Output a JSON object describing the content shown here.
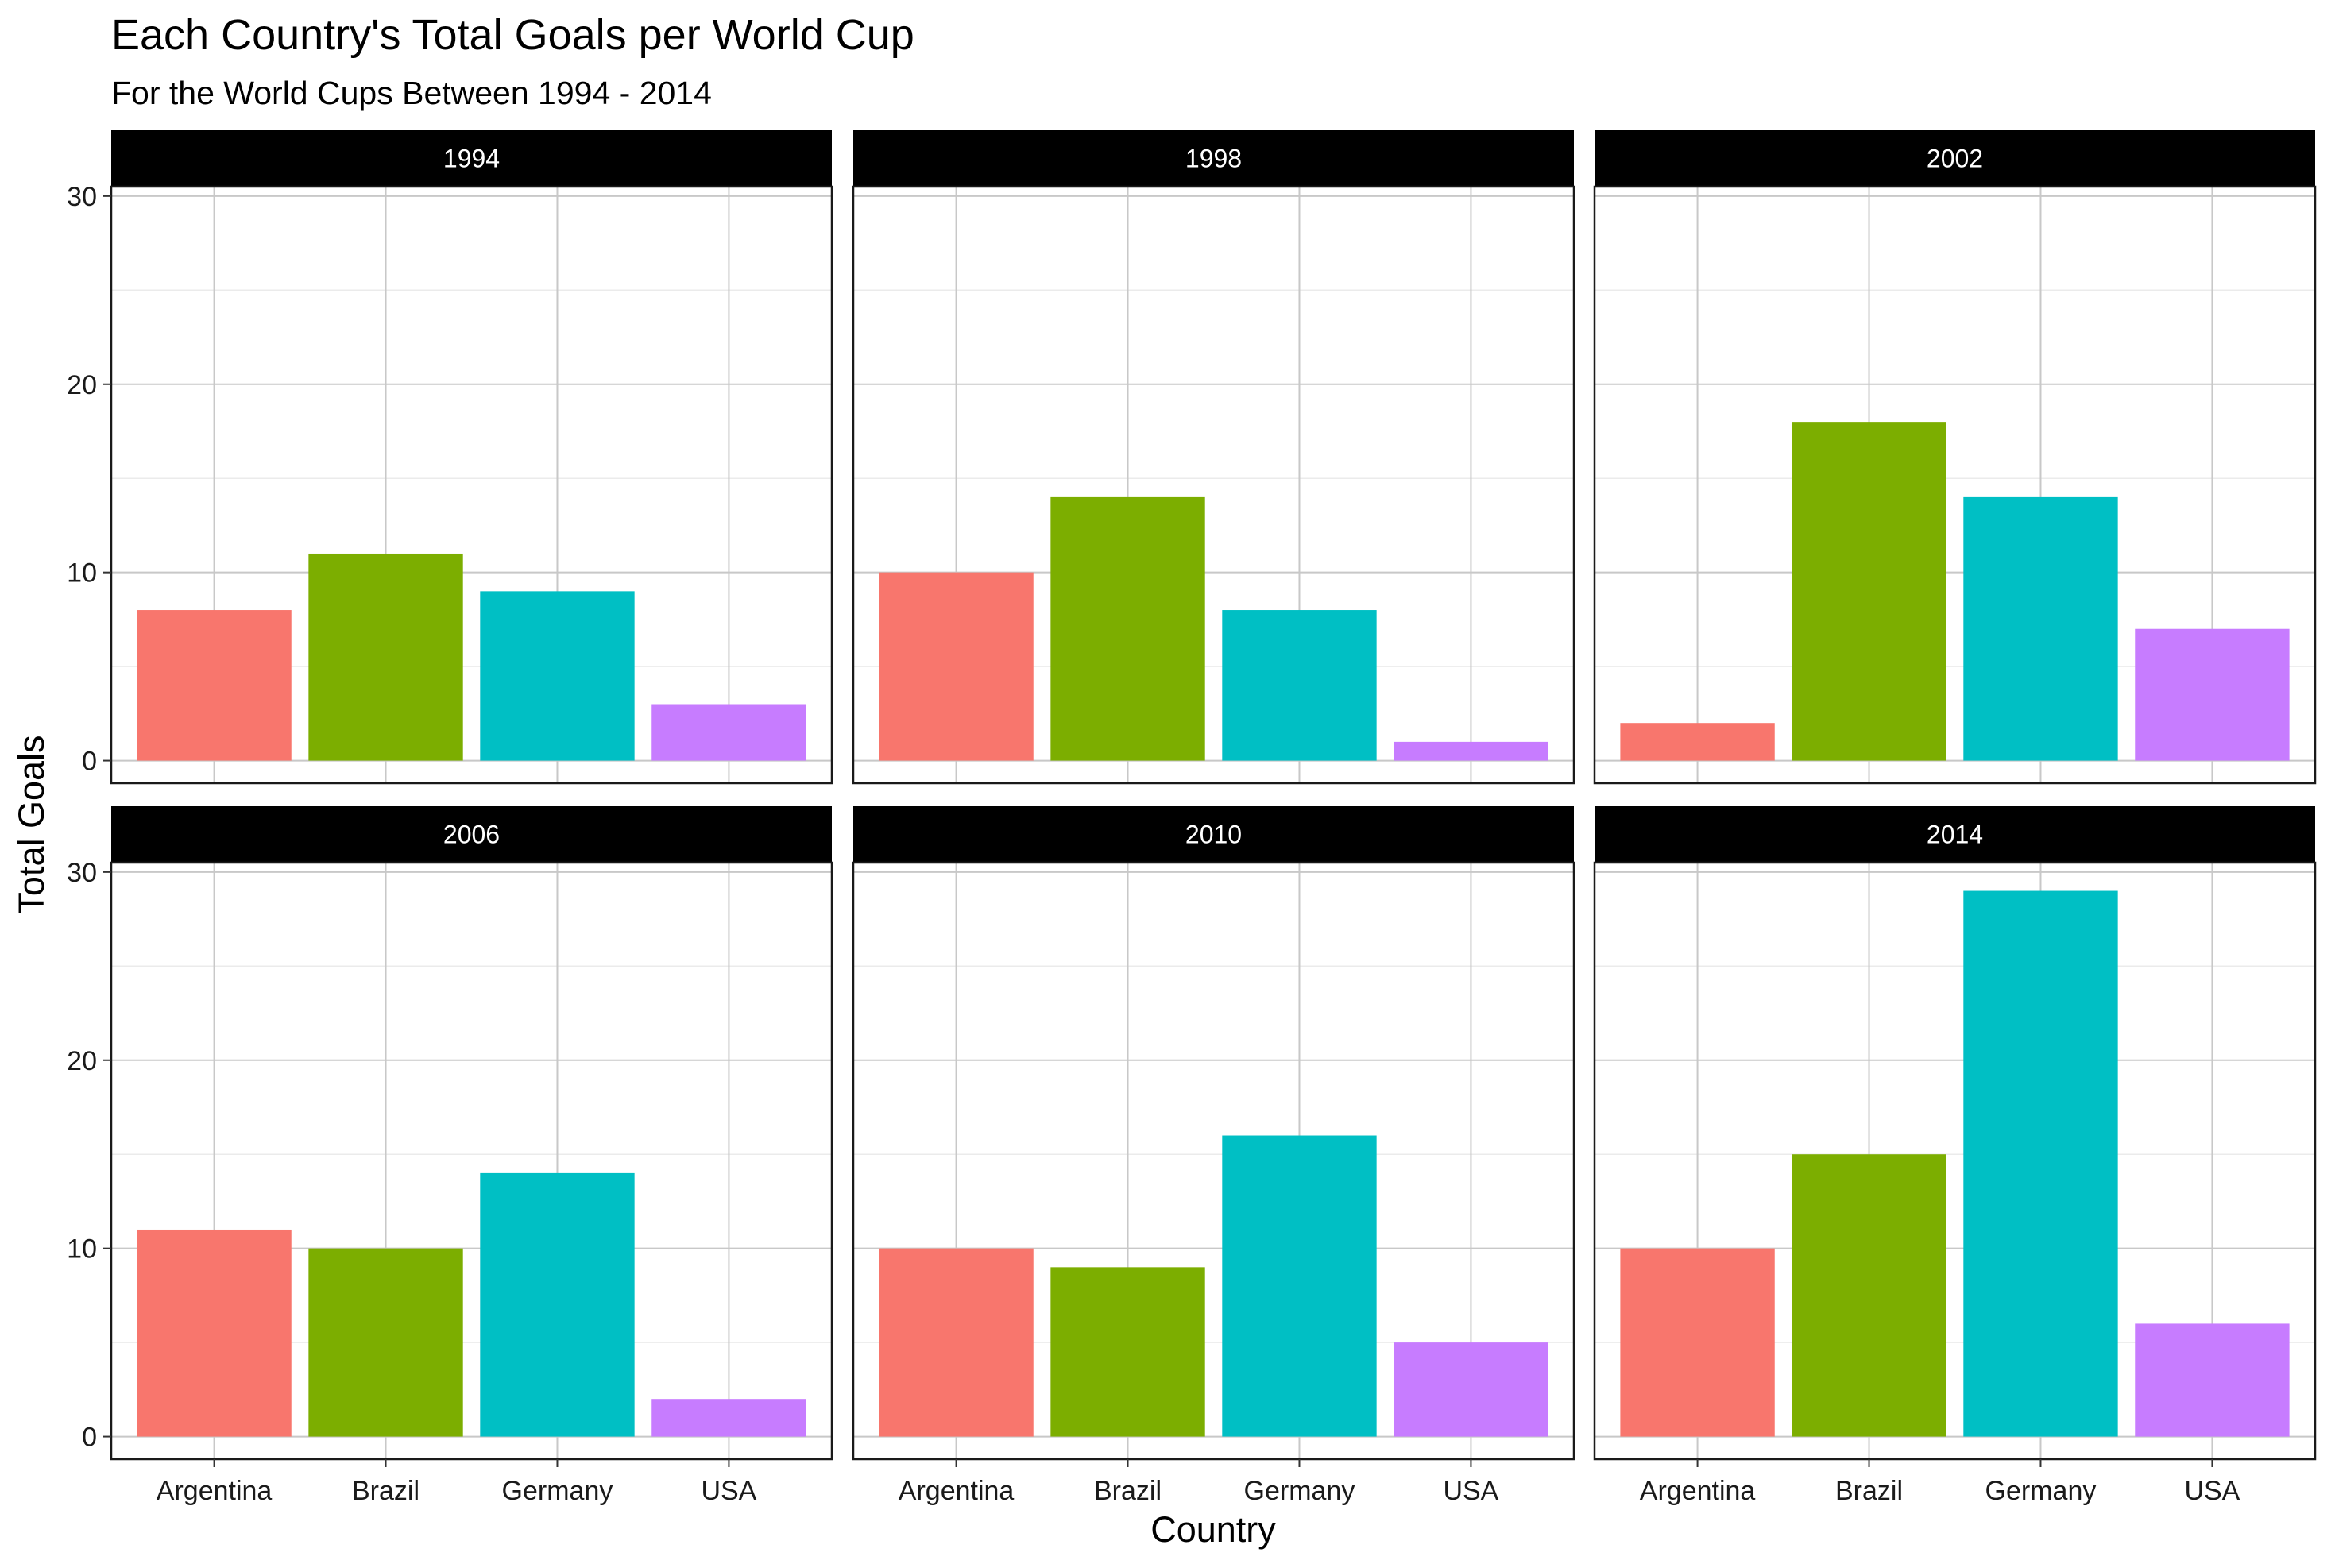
{
  "chart_data": {
    "type": "bar",
    "title": "Each Country's Total Goals per World Cup",
    "subtitle": "For the World Cups Between 1994 - 2014",
    "xlabel": "Country",
    "ylabel": "Total Goals",
    "categories": [
      "Argentina",
      "Brazil",
      "Germany",
      "USA"
    ],
    "colors": [
      "#F8766D",
      "#7CAE00",
      "#00BFC4",
      "#C77CFF"
    ],
    "ylim": [
      -1.2,
      30.5
    ],
    "yticks": [
      0,
      10,
      20,
      30
    ],
    "ytick_labels": [
      "0",
      "10",
      "20",
      "30"
    ],
    "grid": true,
    "legend": "none",
    "facets": [
      {
        "label": "1994",
        "values": [
          8,
          11,
          9,
          3
        ]
      },
      {
        "label": "1998",
        "values": [
          10,
          14,
          8,
          1
        ]
      },
      {
        "label": "2002",
        "values": [
          2,
          18,
          14,
          7
        ]
      },
      {
        "label": "2006",
        "values": [
          11,
          10,
          14,
          2
        ]
      },
      {
        "label": "2010",
        "values": [
          10,
          9,
          16,
          5
        ]
      },
      {
        "label": "2014",
        "values": [
          10,
          15,
          29,
          6
        ]
      }
    ]
  }
}
